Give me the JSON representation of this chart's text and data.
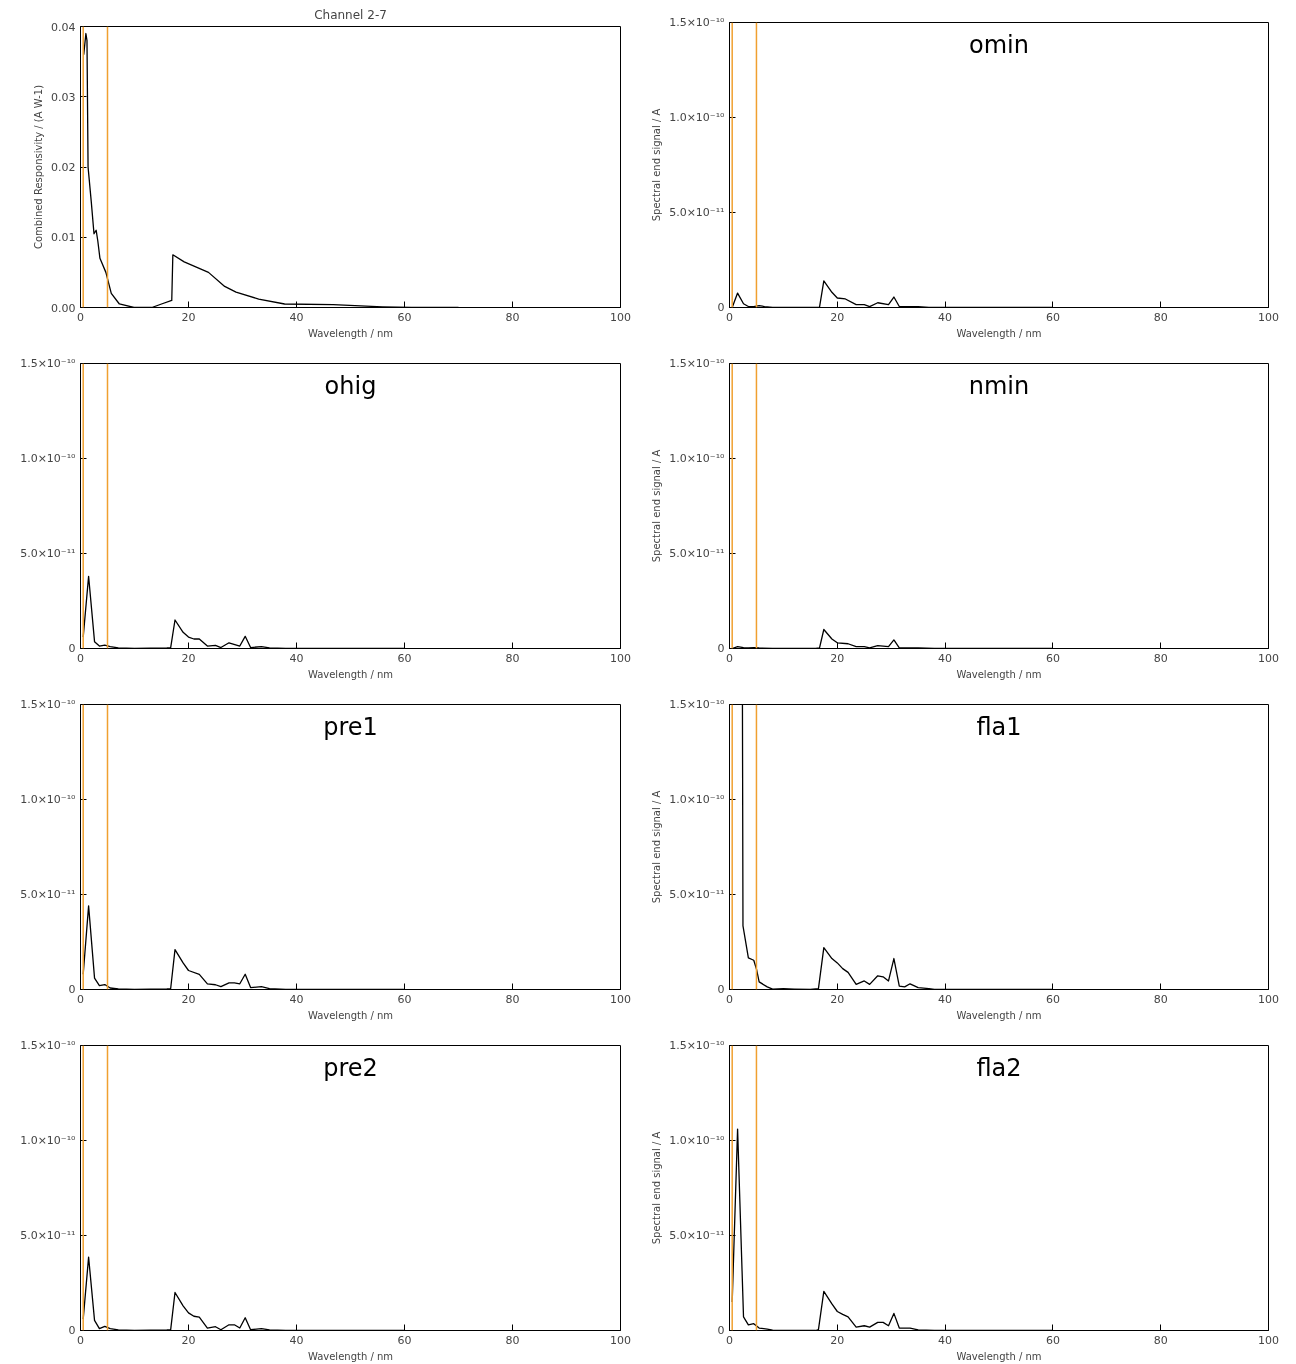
{
  "chart_data": [
    {
      "type": "line",
      "title": "Channel 2-7",
      "xlabel": "Wavelength / nm",
      "ylabel": "Combined Responsivity / (A W-1)",
      "xlim": [
        0,
        100
      ],
      "xticks": [
        0,
        20,
        40,
        60,
        80,
        100
      ],
      "ylim": [
        0,
        0.04
      ],
      "yticks": [
        {
          "value": 0,
          "label": "0.00"
        },
        {
          "value": 0.01,
          "label": "0.01"
        },
        {
          "value": 0.02,
          "label": "0.02"
        },
        {
          "value": 0.03,
          "label": "0.03"
        },
        {
          "value": 0.04,
          "label": "0.04"
        }
      ],
      "series": [
        {
          "color": "#000000",
          "x": [
            0.6,
            1.0,
            1.2,
            1.4,
            2.0,
            2.5,
            2.9,
            3.2,
            3.6,
            4.7,
            5.7,
            7.2,
            9.9,
            13.2,
            15.0,
            16.9,
            17.1,
            19.2,
            23.7,
            26.7,
            28.8,
            33.0,
            37.8,
            46.8,
            55.9,
            61.3,
            70.0
          ],
          "values": [
            0.036,
            0.039,
            0.038,
            0.02,
            0.015,
            0.0105,
            0.011,
            0.0095,
            0.007,
            0.005,
            0.002,
            0.0005,
            0.0,
            0.0,
            0.0005,
            0.001,
            0.0075,
            0.0065,
            0.005,
            0.003,
            0.0022,
            0.0012,
            0.0005,
            0.0004,
            0.0001,
            0.0,
            0.0
          ]
        }
      ],
      "ref_lines": [
        {
          "axis": "x",
          "value": 0.5,
          "color": "#f0a030"
        },
        {
          "axis": "x",
          "value": 5,
          "color": "#f0a030"
        }
      ]
    },
    {
      "type": "line",
      "annotations": [
        "omin"
      ],
      "xlabel": "Wavelength / nm",
      "ylabel": "Spectral end signal / A",
      "xlim": [
        0,
        100
      ],
      "xticks": [
        0,
        20,
        40,
        60,
        80,
        100
      ],
      "ylim": [
        0,
        1.5e-10
      ],
      "yticks": [
        0,
        {
          "value": 5e-11,
          "label": "5.0×10⁻¹¹"
        },
        {
          "value": 1e-10,
          "label": "1.0×10⁻¹⁰"
        },
        {
          "value": 1.5e-10,
          "label": "1.5×10⁻¹⁰"
        }
      ],
      "series": [
        {
          "color": "#000000",
          "x": [
            0.5,
            1.5,
            2.6,
            3.5,
            4.5,
            5.5,
            6.5,
            8,
            16,
            16.7,
            17.5,
            19,
            20,
            21.5,
            23.5,
            25,
            26,
            27.5,
            29.5,
            30.5,
            31.5,
            35,
            37,
            60
          ],
          "values": [
            0,
            7.6e-12,
            2e-12,
            5e-13,
            5e-13,
            1e-12,
            5e-13,
            0,
            0,
            2e-13,
            1.4e-11,
            8e-12,
            5e-12,
            4.5e-12,
            1.5e-12,
            1.5e-12,
            5e-13,
            2.5e-12,
            1.5e-12,
            5.5e-12,
            5e-13,
            5e-13,
            0,
            0
          ]
        }
      ],
      "ref_lines": [
        {
          "axis": "x",
          "value": 0.5,
          "color": "#f0a030"
        },
        {
          "axis": "x",
          "value": 5,
          "color": "#f0a030"
        }
      ]
    },
    {
      "type": "line",
      "annotations": [
        "ohig"
      ],
      "xlabel": "Wavelength / nm",
      "xlim": [
        0,
        100
      ],
      "xticks": [
        0,
        20,
        40,
        60,
        80,
        100
      ],
      "ylim": [
        0,
        1.5e-10
      ],
      "yticks": [
        0,
        {
          "value": 5e-11,
          "label": "5.0×10⁻¹¹"
        },
        {
          "value": 1e-10,
          "label": "1.0×10⁻¹⁰"
        },
        {
          "value": 1.5e-10,
          "label": "1.5×10⁻¹⁰"
        }
      ],
      "series": [
        {
          "color": "#000000",
          "x": [
            0.5,
            1.5,
            2.6,
            3.5,
            4.5,
            5.5,
            7,
            10,
            16,
            16.7,
            17.5,
            19,
            20,
            21,
            22,
            23.5,
            25,
            26,
            27.5,
            29.5,
            30.5,
            31.5,
            33.5,
            35,
            38,
            60
          ],
          "values": [
            6e-12,
            3.8e-11,
            3.6e-12,
            1.3e-12,
            1.8e-12,
            1e-12,
            3e-13,
            0,
            3e-13,
            5e-13,
            1.5e-11,
            8.5e-12,
            6e-12,
            5e-12,
            5e-12,
            1.3e-12,
            1.6e-12,
            5e-13,
            3e-12,
            1.3e-12,
            6.4e-12,
            5e-13,
            1e-12,
            3e-13,
            0,
            0
          ]
        }
      ],
      "ref_lines": [
        {
          "axis": "x",
          "value": 0.5,
          "color": "#f0a030"
        },
        {
          "axis": "x",
          "value": 5,
          "color": "#f0a030"
        }
      ]
    },
    {
      "type": "line",
      "annotations": [
        "nmin"
      ],
      "xlabel": "Wavelength / nm",
      "ylabel": "Spectral end signal / A",
      "xlim": [
        0,
        100
      ],
      "xticks": [
        0,
        20,
        40,
        60,
        80,
        100
      ],
      "ylim": [
        0,
        1.5e-10
      ],
      "yticks": [
        0,
        {
          "value": 5e-11,
          "label": "5.0×10⁻¹¹"
        },
        {
          "value": 1e-10,
          "label": "1.0×10⁻¹⁰"
        },
        {
          "value": 1.5e-10,
          "label": "1.5×10⁻¹⁰"
        }
      ],
      "series": [
        {
          "color": "#000000",
          "x": [
            0.5,
            1.5,
            2.6,
            3.5,
            4.5,
            5.5,
            8,
            16,
            16.7,
            17.5,
            19,
            20,
            22,
            23.5,
            25,
            26,
            27.5,
            29.5,
            30.5,
            31.5,
            35,
            38,
            60
          ],
          "values": [
            0,
            1e-12,
            5e-13,
            3e-13,
            5e-13,
            3e-13,
            0,
            0,
            3e-13,
            1e-11,
            5e-12,
            3e-12,
            2.5e-12,
            1e-12,
            1e-12,
            3e-13,
            1.5e-12,
            1e-12,
            4.5e-12,
            3e-13,
            3e-13,
            0,
            0
          ]
        }
      ],
      "ref_lines": [
        {
          "axis": "x",
          "value": 0.5,
          "color": "#f0a030"
        },
        {
          "axis": "x",
          "value": 5,
          "color": "#f0a030"
        }
      ]
    },
    {
      "type": "line",
      "annotations": [
        "pre1"
      ],
      "xlabel": "Wavelength / nm",
      "xlim": [
        0,
        100
      ],
      "xticks": [
        0,
        20,
        40,
        60,
        80,
        100
      ],
      "ylim": [
        0,
        1.5e-10
      ],
      "yticks": [
        0,
        {
          "value": 5e-11,
          "label": "5.0×10⁻¹¹"
        },
        {
          "value": 1e-10,
          "label": "1.0×10⁻¹⁰"
        },
        {
          "value": 1.5e-10,
          "label": "1.5×10⁻¹⁰"
        }
      ],
      "series": [
        {
          "color": "#000000",
          "x": [
            0.5,
            1.5,
            2.6,
            3.5,
            4.5,
            5.5,
            7,
            10,
            16,
            16.7,
            17.5,
            19,
            20,
            22,
            23.5,
            25,
            26,
            27.5,
            28.5,
            29.5,
            30.5,
            31.5,
            33.5,
            35,
            38,
            60
          ],
          "values": [
            8e-12,
            4.4e-11,
            6e-12,
            2e-12,
            2.6e-12,
            8e-13,
            3e-13,
            0,
            3e-13,
            5e-13,
            2.1e-11,
            1.4e-11,
            1e-11,
            8e-12,
            3e-12,
            2.5e-12,
            1.5e-12,
            3.5e-12,
            3.5e-12,
            3e-12,
            8e-12,
            1e-12,
            1.5e-12,
            5e-13,
            0,
            0
          ]
        }
      ],
      "ref_lines": [
        {
          "axis": "x",
          "value": 0.5,
          "color": "#f0a030"
        },
        {
          "axis": "x",
          "value": 5,
          "color": "#f0a030"
        }
      ]
    },
    {
      "type": "line",
      "annotations": [
        "fla1"
      ],
      "xlabel": "Wavelength / nm",
      "ylabel": "Spectral end signal / A",
      "xlim": [
        0,
        100
      ],
      "xticks": [
        0,
        20,
        40,
        60,
        80,
        100
      ],
      "ylim": [
        0,
        1.5e-10
      ],
      "yticks": [
        0,
        {
          "value": 5e-11,
          "label": "5.0×10⁻¹¹"
        },
        {
          "value": 1e-10,
          "label": "1.0×10⁻¹⁰"
        },
        {
          "value": 1.5e-10,
          "label": "1.5×10⁻¹⁰"
        }
      ],
      "series": [
        {
          "color": "#000000",
          "x": [
            2.4,
            2.5,
            3.5,
            4.5,
            5,
            5.5,
            7,
            8,
            10,
            12,
            15,
            16.5,
            17.5,
            19,
            20,
            21,
            22,
            23.5,
            25,
            26,
            27.5,
            28.5,
            29.5,
            30.5,
            31.5,
            32.5,
            33.5,
            35,
            37,
            38,
            60
          ],
          "values": [
            1.5e-10,
            3.35e-11,
            1.66e-11,
            1.54e-11,
            1.08e-11,
            4e-12,
            1.4e-12,
            2e-13,
            4e-13,
            2e-13,
            0,
            5e-13,
            2.2e-11,
            1.63e-11,
            1.4e-11,
            1.1e-11,
            9e-12,
            2.7e-12,
            4.5e-12,
            2.7e-12,
            7.2e-12,
            6.7e-12,
            4.5e-12,
            1.63e-11,
            1.8e-12,
            1.4e-12,
            3e-12,
            1e-12,
            5e-13,
            0,
            0
          ]
        }
      ],
      "ref_lines": [
        {
          "axis": "x",
          "value": 0.5,
          "color": "#f0a030"
        },
        {
          "axis": "x",
          "value": 5,
          "color": "#f0a030"
        }
      ]
    },
    {
      "type": "line",
      "annotations": [
        "pre2"
      ],
      "xlabel": "Wavelength / nm",
      "xlim": [
        0,
        100
      ],
      "xticks": [
        0,
        20,
        40,
        60,
        80,
        100
      ],
      "ylim": [
        0,
        1.5e-10
      ],
      "yticks": [
        0,
        {
          "value": 5e-11,
          "label": "5.0×10⁻¹¹"
        },
        {
          "value": 1e-10,
          "label": "1.0×10⁻¹⁰"
        },
        {
          "value": 1.5e-10,
          "label": "1.5×10⁻¹⁰"
        }
      ],
      "series": [
        {
          "color": "#000000",
          "x": [
            0.5,
            1.5,
            2.6,
            3.5,
            4.5,
            5.5,
            7,
            10,
            16,
            16.7,
            17.5,
            19,
            20,
            21,
            22,
            23.5,
            25,
            26,
            27.5,
            28.5,
            29.5,
            30.5,
            31.5,
            33.5,
            35,
            38,
            60
          ],
          "values": [
            6e-12,
            3.86e-11,
            5.3e-12,
            1e-12,
            2.2e-12,
            1e-12,
            3e-13,
            0,
            3e-13,
            5e-13,
            2e-11,
            1.3e-11,
            9.3e-12,
            7.5e-12,
            7e-12,
            1.3e-12,
            2e-12,
            4e-13,
            3e-12,
            3e-12,
            1.3e-12,
            6.7e-12,
            4e-13,
            1e-12,
            3e-13,
            0,
            0
          ]
        }
      ],
      "ref_lines": [
        {
          "axis": "x",
          "value": 0.5,
          "color": "#f0a030"
        },
        {
          "axis": "x",
          "value": 5,
          "color": "#f0a030"
        }
      ]
    },
    {
      "type": "line",
      "annotations": [
        "fla2"
      ],
      "xlabel": "Wavelength / nm",
      "ylabel": "Spectral end signal / A",
      "xlim": [
        0,
        100
      ],
      "xticks": [
        0,
        20,
        40,
        60,
        80,
        100
      ],
      "ylim": [
        0,
        1.5e-10
      ],
      "yticks": [
        0,
        {
          "value": 5e-11,
          "label": "5.0×10⁻¹¹"
        },
        {
          "value": 1e-10,
          "label": "1.0×10⁻¹⁰"
        },
        {
          "value": 1.5e-10,
          "label": "1.5×10⁻¹⁰"
        }
      ],
      "series": [
        {
          "color": "#000000",
          "x": [
            0.5,
            1.5,
            2.6,
            3.5,
            4.5,
            5.5,
            7,
            8,
            10,
            16,
            16.5,
            17.5,
            19,
            20,
            21,
            22,
            23.5,
            25,
            26,
            27.5,
            28.5,
            29.5,
            30.5,
            31.5,
            33.5,
            35,
            38,
            60
          ],
          "values": [
            1.5e-11,
            1.06e-10,
            7.2e-12,
            3e-12,
            3.6e-12,
            1.3e-12,
            7e-13,
            2e-13,
            0,
            0,
            5e-13,
            2.06e-11,
            1.4e-11,
            1e-11,
            8.5e-12,
            7.2e-12,
            1.8e-12,
            2.5e-12,
            1.8e-12,
            4.3e-12,
            4.3e-12,
            2.5e-12,
            9e-12,
            1.3e-12,
            1.3e-12,
            3e-13,
            0,
            0
          ]
        }
      ],
      "ref_lines": [
        {
          "axis": "x",
          "value": 0.5,
          "color": "#f0a030"
        },
        {
          "axis": "x",
          "value": 5,
          "color": "#f0a030"
        }
      ]
    }
  ]
}
